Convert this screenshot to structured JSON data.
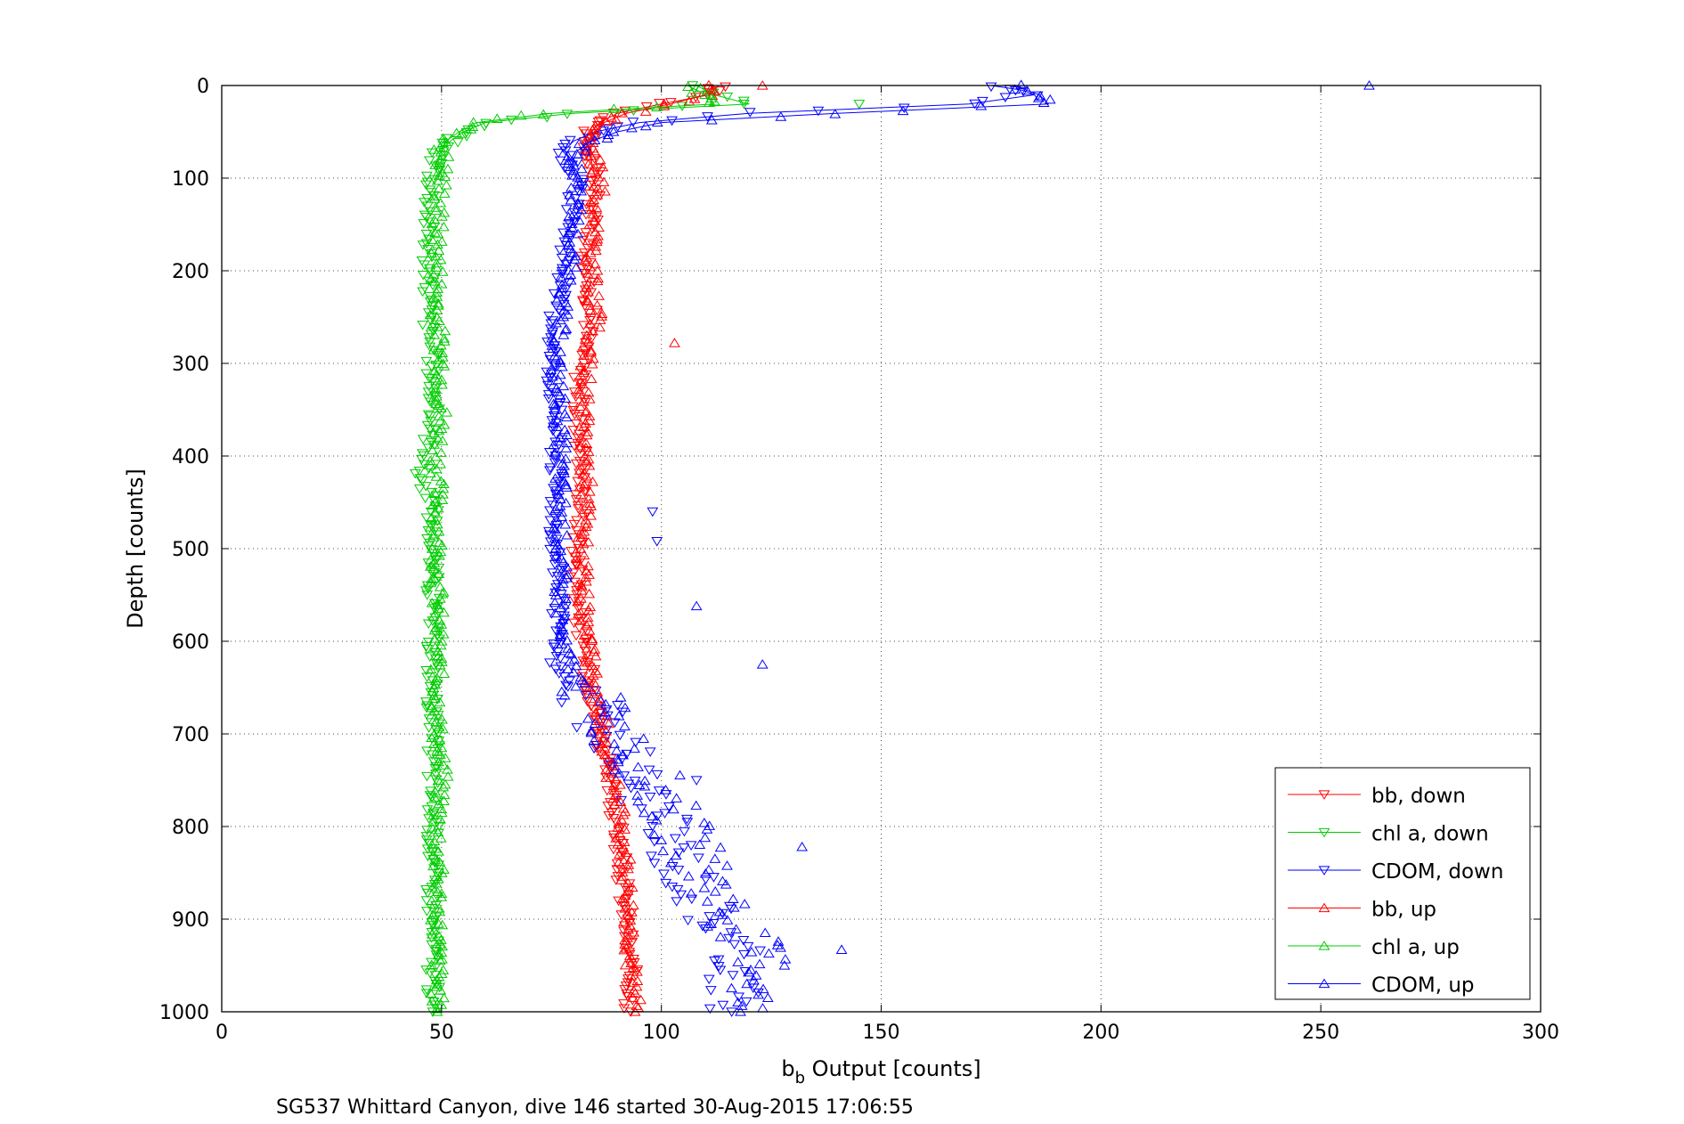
{
  "chart_data": {
    "type": "scatter",
    "xlabel_main": "b",
    "xlabel_sub": "b",
    "xlabel_rest": " Output [counts]",
    "ylabel": "Depth [counts]",
    "caption": "SG537 Whittard Canyon, dive 146 started 30-Aug-2015 17:06:55",
    "xlim": [
      0,
      300
    ],
    "ylim": [
      0,
      1000
    ],
    "y_reversed": true,
    "grid": true,
    "xticks": [
      "0",
      "50",
      "100",
      "150",
      "200",
      "250",
      "300"
    ],
    "yticks": [
      "0",
      "100",
      "200",
      "300",
      "400",
      "500",
      "600",
      "700",
      "800",
      "900",
      "1000"
    ],
    "legend_position": "bottom-right",
    "series": [
      {
        "name": "bb, down",
        "color": "#ff0000",
        "marker": "triangle-down",
        "depth": [
          0,
          10,
          20,
          30,
          40,
          50,
          60,
          70,
          80,
          100,
          150,
          200,
          250,
          300,
          350,
          400,
          450,
          500,
          550,
          600,
          620,
          650,
          700,
          750,
          800,
          850,
          900,
          950,
          1000
        ],
        "x": [
          113,
          111,
          100,
          90,
          86,
          84,
          82,
          83,
          84,
          85,
          84,
          83,
          84,
          82,
          81,
          82,
          82,
          81,
          81,
          82,
          83,
          84,
          86,
          88,
          90,
          91,
          92,
          93,
          93
        ]
      },
      {
        "name": "chl a, down",
        "color": "#00cc00",
        "marker": "triangle-down",
        "depth": [
          0,
          10,
          20,
          30,
          40,
          50,
          60,
          70,
          80,
          90,
          100,
          150,
          200,
          250,
          300,
          350,
          400,
          420,
          450,
          500,
          550,
          600,
          650,
          700,
          750,
          800,
          850,
          900,
          950,
          1000
        ],
        "x": [
          108,
          112,
          120,
          80,
          60,
          55,
          52,
          50,
          49,
          49,
          48,
          47,
          47,
          47,
          48,
          48,
          47,
          45,
          48,
          48,
          48,
          48,
          48,
          48,
          48,
          48,
          48,
          48,
          48,
          48
        ],
        "outliers": [
          [
            145,
            20
          ]
        ]
      },
      {
        "name": "CDOM, down",
        "color": "#0000ff",
        "marker": "triangle-down",
        "depth": [
          0,
          5,
          10,
          20,
          30,
          40,
          50,
          60,
          70,
          80,
          90,
          100,
          150,
          200,
          250,
          300,
          350,
          400,
          450,
          500,
          550,
          600,
          630,
          650,
          700,
          750,
          800,
          850,
          900,
          950,
          1000
        ],
        "x": [
          175,
          182,
          185,
          170,
          120,
          95,
          85,
          80,
          78,
          79,
          80,
          81,
          79,
          78,
          76,
          75,
          76,
          76,
          76,
          76,
          77,
          76,
          76,
          80,
          88,
          95,
          100,
          106,
          112,
          118,
          116
        ],
        "outliers": [
          [
            98,
            460
          ],
          [
            99,
            492
          ],
          [
            108,
            750
          ]
        ]
      },
      {
        "name": "bb, up",
        "color": "#ff0000",
        "marker": "triangle-up",
        "depth": [
          0,
          10,
          20,
          30,
          40,
          50,
          60,
          70,
          80,
          100,
          150,
          200,
          250,
          300,
          350,
          400,
          450,
          500,
          550,
          600,
          650,
          700,
          750,
          800,
          850,
          900,
          950,
          1000
        ],
        "x": [
          112,
          110,
          102,
          92,
          87,
          85,
          84,
          84,
          85,
          86,
          85,
          84,
          85,
          83,
          82,
          83,
          83,
          82,
          82,
          83,
          85,
          87,
          89,
          91,
          92,
          93,
          93,
          94
        ],
        "outliers": [
          [
            103,
            278
          ],
          [
            123,
            0
          ]
        ]
      },
      {
        "name": "chl a, up",
        "color": "#00cc00",
        "marker": "triangle-up",
        "depth": [
          0,
          10,
          20,
          30,
          40,
          50,
          60,
          70,
          80,
          90,
          100,
          150,
          200,
          250,
          300,
          350,
          400,
          450,
          500,
          550,
          600,
          650,
          700,
          750,
          800,
          850,
          900,
          950,
          1000
        ],
        "x": [
          106,
          110,
          112,
          75,
          58,
          54,
          51,
          50,
          50,
          50,
          50,
          49,
          49,
          49,
          50,
          50,
          49,
          49,
          49,
          49,
          49,
          49,
          49,
          50,
          49,
          49,
          49,
          49,
          49
        ]
      },
      {
        "name": "CDOM, up",
        "color": "#0000ff",
        "marker": "triangle-up",
        "depth": [
          0,
          10,
          20,
          30,
          40,
          50,
          60,
          70,
          80,
          90,
          100,
          150,
          200,
          250,
          300,
          350,
          400,
          450,
          500,
          550,
          600,
          650,
          700,
          750,
          800,
          850,
          900,
          950,
          1000
        ],
        "x": [
          180,
          186,
          188,
          140,
          100,
          90,
          84,
          81,
          80,
          80,
          81,
          80,
          79,
          77,
          76,
          77,
          77,
          77,
          77,
          77,
          77,
          82,
          90,
          98,
          104,
          110,
          116,
          124,
          118
        ],
        "outliers": [
          [
            261,
            0
          ],
          [
            108,
            562
          ],
          [
            123,
            625
          ],
          [
            132,
            822
          ],
          [
            141,
            933
          ],
          [
            128,
            950
          ]
        ]
      }
    ]
  }
}
